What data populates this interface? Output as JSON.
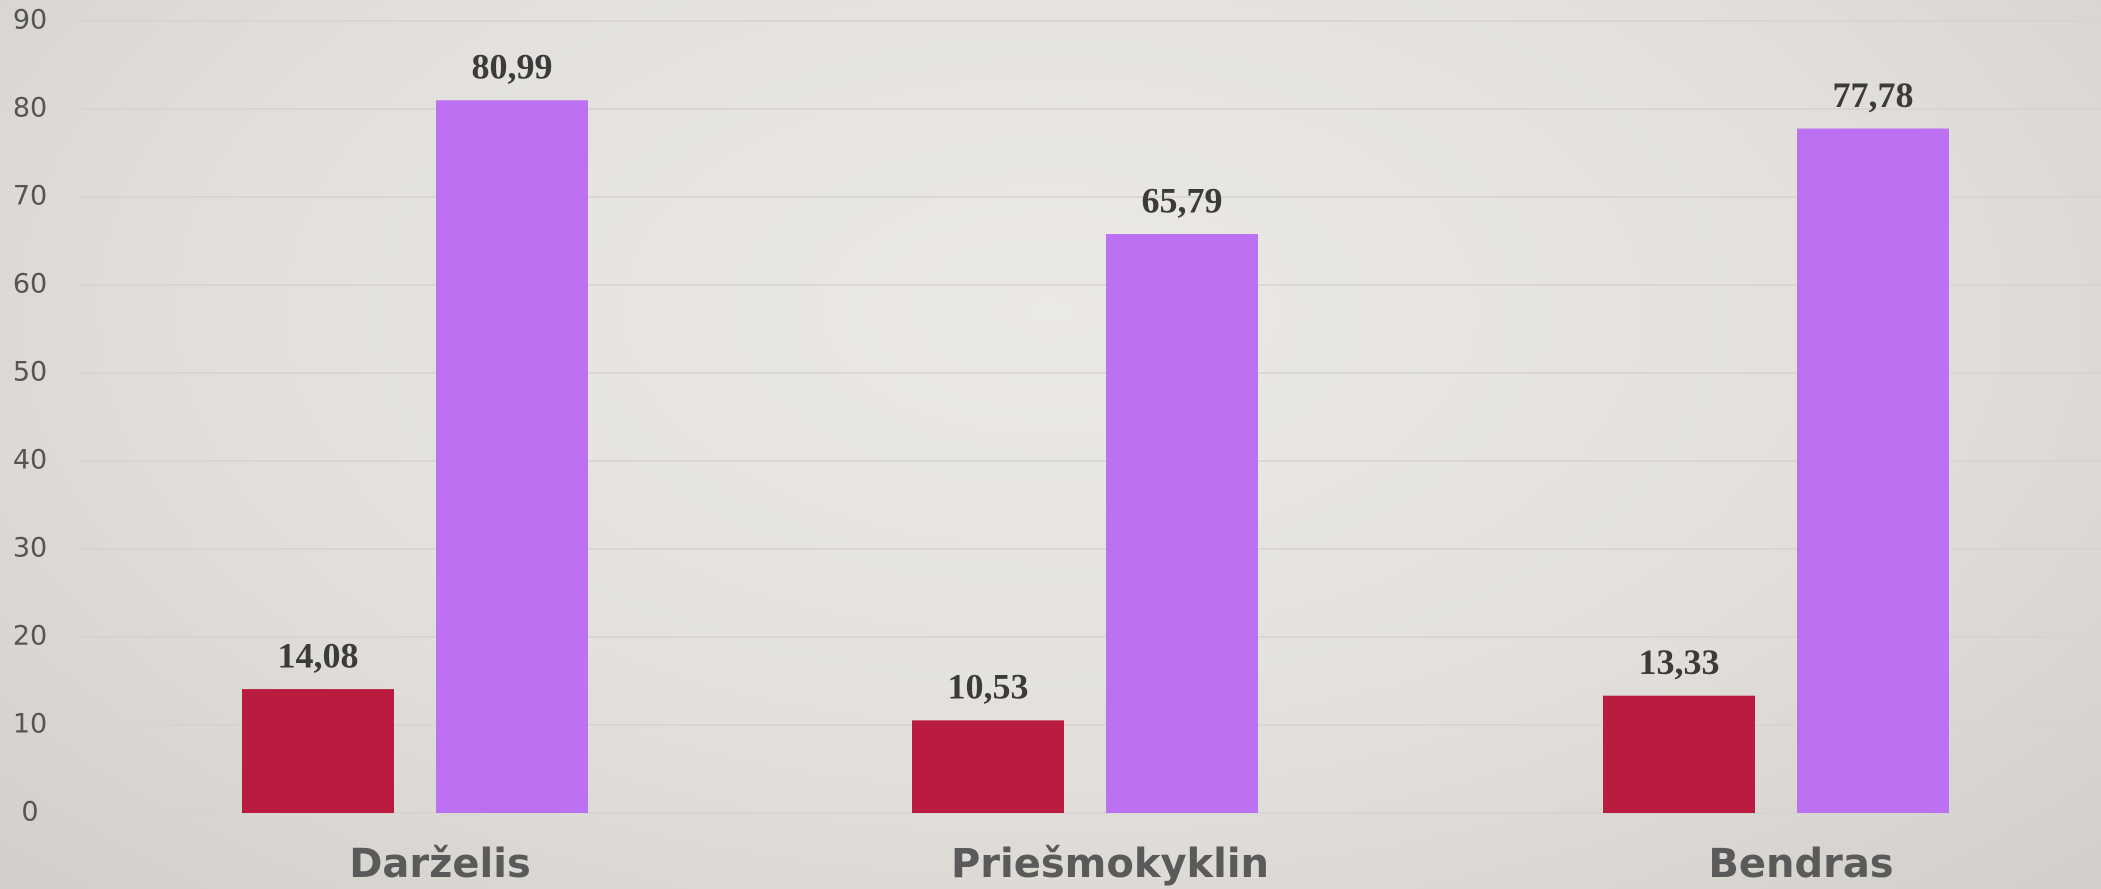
{
  "chart_data": {
    "type": "bar",
    "categories": [
      "Darželis",
      "Priešmokyklin",
      "Bendras"
    ],
    "series": [
      {
        "color": "#b91c3f",
        "values": [
          14.08,
          10.53,
          13.33
        ],
        "value_labels": [
          "14,08",
          "10,53",
          "13,33"
        ]
      },
      {
        "color": "#bb71f1",
        "values": [
          80.99,
          65.79,
          77.78
        ],
        "value_labels": [
          "80,99",
          "65,79",
          "77,78"
        ]
      }
    ],
    "ylim": [
      0,
      90
    ],
    "yticks": [
      0,
      10,
      20,
      30,
      40,
      50,
      60,
      70,
      80,
      90
    ],
    "grid": true
  }
}
